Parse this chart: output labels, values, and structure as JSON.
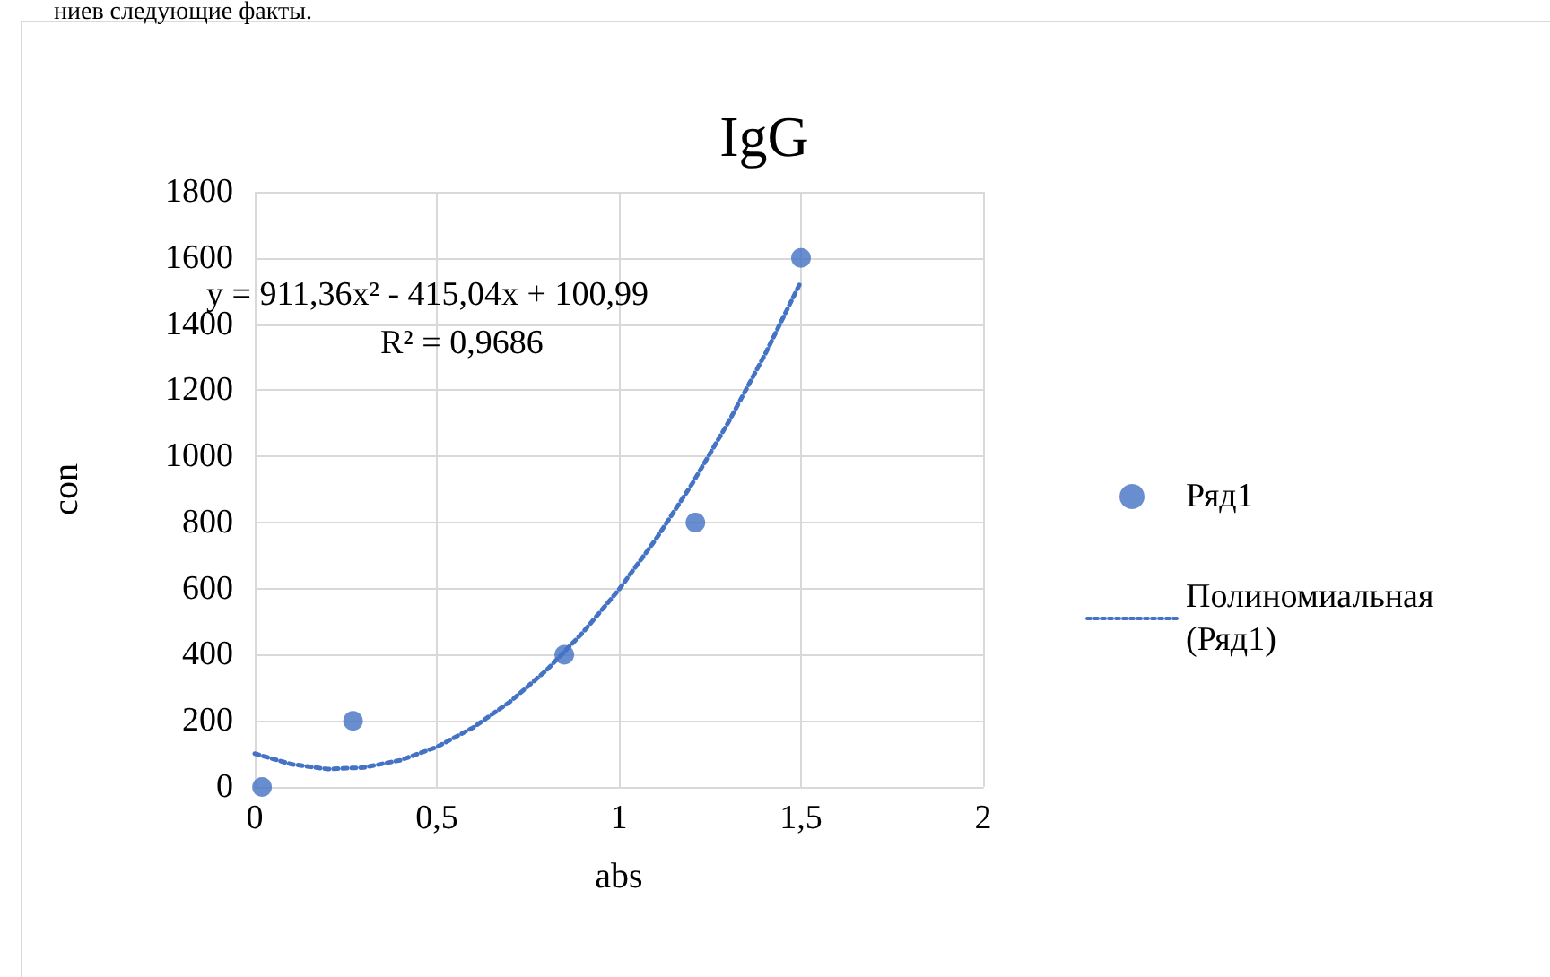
{
  "chart_data": {
    "type": "scatter",
    "title": "IgG",
    "xlabel": "abs",
    "ylabel": "con",
    "annotations": [
      "ниев следующие факты.",
      "y = 911,36x² - 415,04x + 100,99",
      "R² = 0,9686"
    ],
    "series": [
      {
        "name": "Ряд1",
        "type": "scatter",
        "color": "#4472c4",
        "marker": "circle",
        "x": [
          0.02,
          0.27,
          0.85,
          1.21,
          1.5
        ],
        "values": [
          0,
          200,
          400,
          800,
          1600
        ]
      },
      {
        "name": "Полиномиальная (Ряд1)",
        "type": "line",
        "color": "#4472c4",
        "line_style": "dotted",
        "marker": "none",
        "x": [
          0,
          0.1,
          0.2,
          0.3,
          0.4,
          0.5,
          0.6,
          0.7,
          0.8,
          0.9,
          1.0,
          1.1,
          1.2,
          1.3,
          1.4,
          1.5
        ],
        "values": [
          101,
          69,
          54,
          59,
          81,
          121,
          180,
          257,
          352,
          466,
          597,
          747,
          915,
          1102,
          1306,
          1529
        ]
      }
    ],
    "xlim": [
      0,
      2
    ],
    "xticks": [
      0,
      {
        "value": 0.5,
        "label": "0,5"
      },
      1,
      {
        "value": 1.5,
        "label": "1,5"
      },
      2
    ],
    "ylim": [
      0,
      1800
    ],
    "yticks": [
      0,
      200,
      400,
      600,
      800,
      1000,
      1200,
      1400,
      1600,
      1800
    ],
    "grid": true,
    "legend": "right"
  }
}
